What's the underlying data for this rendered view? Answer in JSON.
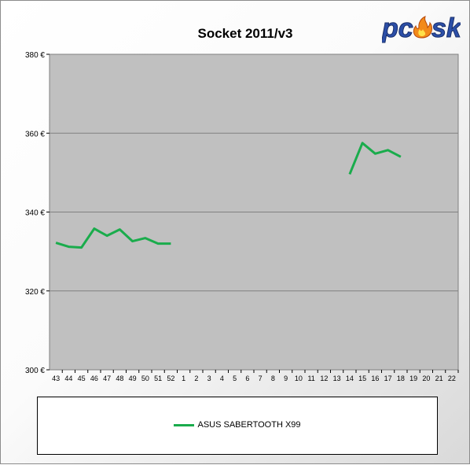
{
  "chart_data": {
    "type": "line",
    "title": "Socket 2011/v3",
    "x_categories": [
      "43",
      "44",
      "45",
      "46",
      "47",
      "48",
      "49",
      "50",
      "51",
      "52",
      "1",
      "2",
      "3",
      "4",
      "5",
      "6",
      "7",
      "8",
      "9",
      "10",
      "11",
      "12",
      "13",
      "14",
      "15",
      "16",
      "17",
      "18",
      "19",
      "20",
      "21",
      "22"
    ],
    "ylim": [
      300,
      380
    ],
    "y_ticks": [
      300,
      320,
      340,
      360,
      380
    ],
    "y_tick_labels": [
      "300 €",
      "320 €",
      "340 €",
      "360 €",
      "380 €"
    ],
    "grid": true,
    "legend_position": "bottom",
    "series": [
      {
        "name": "ASUS SABERTOOTH X99",
        "color": "#1aac4c",
        "values": [
          332.2,
          331.2,
          331.0,
          335.8,
          334.0,
          335.6,
          332.6,
          333.4,
          332.0,
          332.0,
          null,
          null,
          null,
          null,
          null,
          null,
          null,
          null,
          null,
          null,
          null,
          null,
          null,
          349.6,
          357.5,
          354.8,
          355.7,
          354.0,
          null,
          null,
          null,
          null
        ]
      }
    ]
  },
  "logo": {
    "text_pc": "pc",
    "text_sk": "sk",
    "alt": "pcesk"
  },
  "colors": {
    "plot_bg": "#c0c0c0",
    "grid": "#808080",
    "series": "#1aac4c"
  }
}
